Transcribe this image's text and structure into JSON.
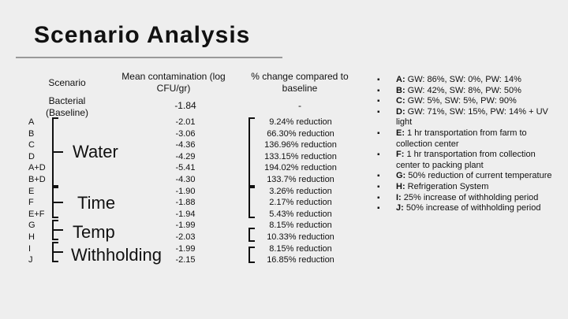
{
  "title": "Scenario Analysis",
  "headers": {
    "scenario": "Scenario",
    "mean": "Mean contamination (log CFU/gr)",
    "change": "% change compared to baseline"
  },
  "baseline": {
    "label": "Bacterial (Baseline)",
    "mean": "-1.84",
    "change": "-"
  },
  "rows": [
    {
      "scenario": "A",
      "mean": "-2.01",
      "change": "9.24% reduction"
    },
    {
      "scenario": "B",
      "mean": "-3.06",
      "change": "66.30% reduction"
    },
    {
      "scenario": "C",
      "mean": "-4.36",
      "change": "136.96% reduction"
    },
    {
      "scenario": "D",
      "mean": "-4.29",
      "change": "133.15% reduction"
    },
    {
      "scenario": "A+D",
      "mean": "-5.41",
      "change": "194.02% reduction"
    },
    {
      "scenario": "B+D",
      "mean": "-4.30",
      "change": "133.7% reduction"
    },
    {
      "scenario": "E",
      "mean": "-1.90",
      "change": "3.26% reduction"
    },
    {
      "scenario": "F",
      "mean": "-1.88",
      "change": "2.17% reduction"
    },
    {
      "scenario": "E+F",
      "mean": "-1.94",
      "change": "5.43% reduction"
    },
    {
      "scenario": "G",
      "mean": "-1.99",
      "change": "8.15% reduction"
    },
    {
      "scenario": "H",
      "mean": "-2.03",
      "change": "10.33% reduction"
    },
    {
      "scenario": "I",
      "mean": "-1.99",
      "change": "8.15% reduction"
    },
    {
      "scenario": "J",
      "mean": "-2.15",
      "change": "16.85% reduction"
    }
  ],
  "groups": {
    "water": "Water",
    "time": "Time",
    "temp": "Temp",
    "withholding": "Withholding"
  },
  "legend": [
    {
      "key": "A:",
      "text": " GW: 86%, SW: 0%, PW: 14%"
    },
    {
      "key": "B:",
      "text": " GW: 42%, SW: 8%, PW: 50%"
    },
    {
      "key": "C:",
      "text": " GW: 5%, SW: 5%, PW: 90%"
    },
    {
      "key": "D:",
      "text": " GW: 71%, SW: 15%, PW: 14% + UV light"
    },
    {
      "key": "E:",
      "text": " 1 hr transportation from farm to collection center"
    },
    {
      "key": "F:",
      "text": " 1 hr transportation from collection center to packing plant"
    },
    {
      "key": "G:",
      "text": " 50% reduction of current temperature"
    },
    {
      "key": "H:",
      "text": " Refrigeration System"
    },
    {
      "key": "I:",
      "text": " 25% increase of withholding period"
    },
    {
      "key": "J:",
      "text": " 50% increase of withholding period"
    }
  ],
  "bullet_glyph": "▪"
}
